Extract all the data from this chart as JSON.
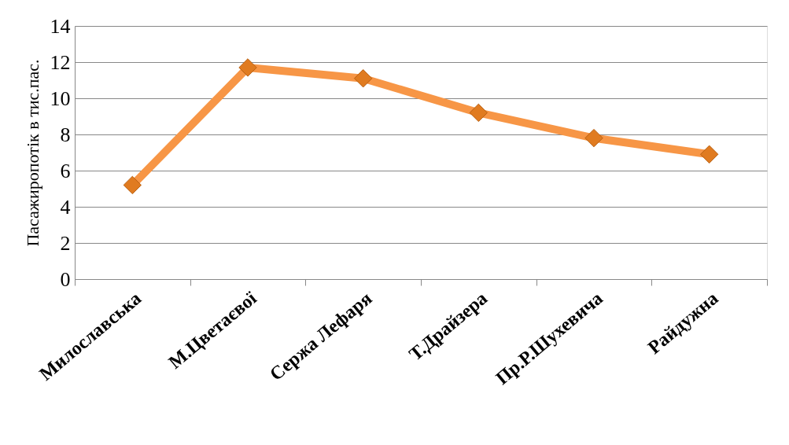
{
  "chart_data": {
    "type": "line",
    "ylabel": "Пасажиропотік в тис.пас.",
    "categories": [
      "Милославська",
      "М.Цветаєвої",
      "Сержа Лефаря",
      "Т.Драйзера",
      "Пр.Р.Шухевича",
      "Райдужна"
    ],
    "series": [
      {
        "color": "#f79646",
        "values": [
          5.2,
          11.7,
          11.1,
          9.2,
          7.8,
          6.9
        ]
      }
    ],
    "ylim": [
      0,
      14
    ],
    "yticks": [
      0,
      2,
      4,
      6,
      8,
      10,
      12,
      14
    ],
    "grid": "y",
    "marker": "diamond",
    "line_style": "solid"
  }
}
